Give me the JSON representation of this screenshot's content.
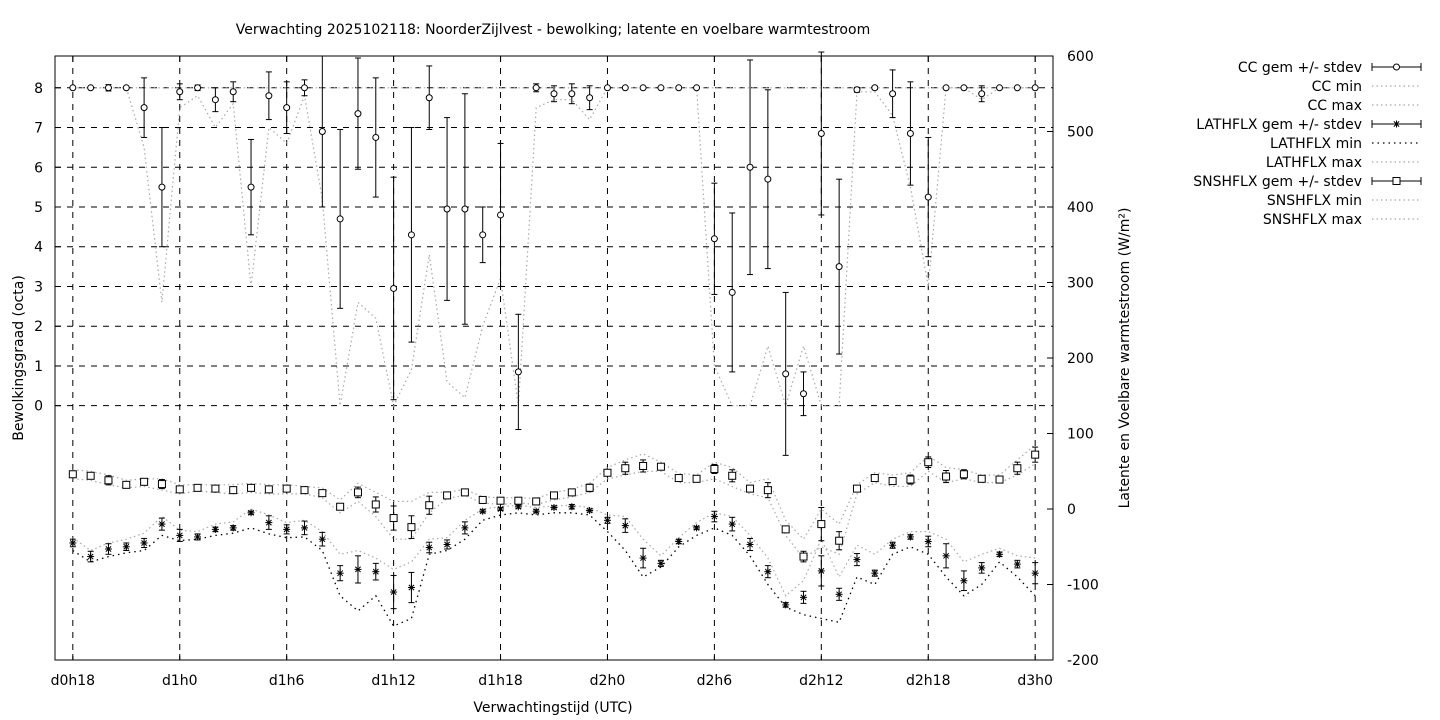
{
  "chart_data": {
    "type": "line",
    "title": "Verwachting 2025102118: NoorderZijlvest - bewolking; latente en voelbare warmtestroom",
    "xlabel": "Verwachtingstijd (UTC)",
    "ylabel": "Bewolkingsgraad (octa)",
    "y2label": "Latente en Voelbare warmtestroom (W/m²)",
    "xlim": [
      17,
      73
    ],
    "ylim": [
      -6.4,
      8.8
    ],
    "y2lim": [
      -200,
      600
    ],
    "grid": true,
    "legend_position": "outside-right",
    "x_ticks": [
      {
        "value": 18,
        "label": "d0h18"
      },
      {
        "value": 24,
        "label": "d1h0"
      },
      {
        "value": 30,
        "label": "d1h6"
      },
      {
        "value": 36,
        "label": "d1h12"
      },
      {
        "value": 42,
        "label": "d1h18"
      },
      {
        "value": 48,
        "label": "d2h0"
      },
      {
        "value": 54,
        "label": "d2h6"
      },
      {
        "value": 60,
        "label": "d2h12"
      },
      {
        "value": 66,
        "label": "d2h18"
      },
      {
        "value": 72,
        "label": "d3h0"
      }
    ],
    "y_ticks": [
      {
        "value": 0,
        "label": "0"
      },
      {
        "value": 1,
        "label": "1"
      },
      {
        "value": 2,
        "label": "2"
      },
      {
        "value": 3,
        "label": "3"
      },
      {
        "value": 4,
        "label": "4"
      },
      {
        "value": 5,
        "label": "5"
      },
      {
        "value": 6,
        "label": "6"
      },
      {
        "value": 7,
        "label": "7"
      },
      {
        "value": 8,
        "label": "8"
      }
    ],
    "y2_ticks": [
      {
        "value": -200,
        "label": "-200"
      },
      {
        "value": -100,
        "label": "-100"
      },
      {
        "value": 0,
        "label": "0"
      },
      {
        "value": 100,
        "label": "100"
      },
      {
        "value": 200,
        "label": "200"
      },
      {
        "value": 300,
        "label": "300"
      },
      {
        "value": 400,
        "label": "400"
      },
      {
        "value": 500,
        "label": "500"
      },
      {
        "value": 600,
        "label": "600"
      }
    ],
    "x": [
      18,
      19,
      20,
      21,
      22,
      23,
      24,
      25,
      26,
      27,
      28,
      29,
      30,
      31,
      32,
      33,
      34,
      35,
      36,
      37,
      38,
      39,
      40,
      41,
      42,
      43,
      44,
      45,
      46,
      47,
      48,
      49,
      50,
      51,
      52,
      53,
      54,
      55,
      56,
      57,
      58,
      59,
      60,
      61,
      62,
      63,
      64,
      65,
      66,
      67,
      68,
      69,
      70,
      71,
      72
    ],
    "series": [
      {
        "name": "CC gem +/- stdev",
        "axis": "left",
        "marker": "circle",
        "values": [
          8,
          8,
          8,
          8,
          7.5,
          5.5,
          7.9,
          8,
          7.7,
          7.9,
          5.5,
          7.8,
          7.5,
          8,
          6.9,
          4.7,
          7.35,
          6.75,
          2.95,
          4.3,
          7.75,
          4.95,
          4.95,
          4.3,
          4.8,
          0.85,
          8,
          7.85,
          7.85,
          7.75,
          8,
          8,
          8,
          8,
          8,
          8,
          4.2,
          2.85,
          6,
          5.7,
          0.8,
          0.3,
          6.85,
          3.5,
          7.95,
          8,
          7.85,
          6.85,
          5.25,
          8,
          8,
          7.85,
          8,
          8,
          8
        ],
        "stdev": [
          0,
          0,
          0.08,
          0,
          0.75,
          1.5,
          0.2,
          0.07,
          0.3,
          0.25,
          1.2,
          0.6,
          0.65,
          0.2,
          1.9,
          2.25,
          1.4,
          1.5,
          2.8,
          2.7,
          0.8,
          2.3,
          2.9,
          0.7,
          1.8,
          1.45,
          0.1,
          0.2,
          0.25,
          0.3,
          0,
          0,
          0,
          0,
          0,
          0,
          1.4,
          2,
          2.7,
          2.25,
          2.05,
          0.55,
          2.05,
          2.2,
          0.06,
          0.04,
          0.6,
          1.3,
          1.5,
          0,
          0,
          0.2,
          0,
          0,
          0
        ],
        "min": [
          8,
          8,
          8,
          8,
          6.5,
          2.6,
          7.5,
          7.8,
          7,
          7.6,
          3,
          7,
          6.6,
          7.8,
          5.2,
          0,
          2.6,
          2.2,
          0,
          0.9,
          3.8,
          0.6,
          0.2,
          2,
          3.2,
          0,
          7.5,
          7.7,
          7.7,
          7.2,
          8,
          8,
          8,
          8,
          8,
          8,
          1,
          0,
          0,
          1.5,
          0,
          1.5,
          0,
          0,
          7.9,
          7.9,
          7.3,
          5.5,
          3,
          8,
          8,
          7.7,
          8,
          8,
          8
        ],
        "max": [
          8,
          8,
          8,
          8,
          8,
          8,
          8,
          8,
          8,
          8,
          8,
          8,
          8,
          8,
          8,
          8,
          8,
          8,
          8,
          8,
          8,
          8,
          8,
          8,
          8,
          8,
          8,
          8,
          8,
          8,
          8,
          8,
          8,
          8,
          8,
          8,
          8,
          8,
          8,
          8,
          8,
          8,
          8,
          8,
          8,
          8,
          8,
          8,
          8,
          8,
          8,
          8,
          8,
          8,
          8
        ]
      },
      {
        "name": "LATHFLX gem +/- stdev",
        "axis": "right",
        "marker": "star",
        "values": [
          -45,
          -63,
          -53,
          -50,
          -45,
          -20,
          -35,
          -37,
          -27,
          -25,
          -5,
          -18,
          -27,
          -25,
          -40,
          -85,
          -80,
          -83,
          -110,
          -104,
          -51,
          -47,
          -25,
          -3,
          0,
          3,
          -3,
          2,
          3,
          -2,
          -15,
          -22,
          -65,
          -72,
          -43,
          -25,
          -10,
          -20,
          -47,
          -83,
          -127,
          -117,
          -82,
          -113,
          -67,
          -85,
          -48,
          -37,
          -43,
          -62,
          -95,
          -78,
          -60,
          -73,
          -85
        ],
        "stdev": [
          5,
          7,
          7,
          5,
          6,
          8,
          8,
          4,
          3,
          3,
          2,
          9,
          6,
          9,
          9,
          10,
          18,
          11,
          22,
          20,
          7,
          6,
          8,
          2,
          2,
          2,
          2,
          2,
          3,
          2,
          4,
          9,
          13,
          4,
          3,
          2,
          7,
          9,
          8,
          8,
          3,
          8,
          20,
          8,
          8,
          4,
          4,
          3,
          7,
          16,
          13,
          7,
          3,
          5,
          14
        ],
        "min": [
          -55,
          -70,
          -63,
          -58,
          -55,
          -35,
          -42,
          -40,
          -35,
          -32,
          -25,
          -33,
          -38,
          -37,
          -55,
          -115,
          -135,
          -115,
          -155,
          -145,
          -60,
          -55,
          -40,
          -15,
          -8,
          -5,
          -8,
          -5,
          -5,
          -8,
          -30,
          -55,
          -90,
          -77,
          -50,
          -35,
          -25,
          -35,
          -62,
          -100,
          -130,
          -140,
          -145,
          -150,
          -90,
          -100,
          -60,
          -50,
          -60,
          -90,
          -115,
          -100,
          -70,
          -90,
          -115
        ],
        "max": [
          -38,
          -55,
          -45,
          -40,
          -32,
          -10,
          -28,
          -30,
          -20,
          -17,
          0,
          -8,
          -18,
          -15,
          -30,
          -60,
          -55,
          -65,
          -80,
          -70,
          -40,
          -38,
          -15,
          0,
          3,
          5,
          2,
          4,
          5,
          2,
          -8,
          -10,
          -40,
          -62,
          -38,
          -18,
          -5,
          -10,
          -35,
          -65,
          -115,
          -95,
          -40,
          -90,
          -48,
          -60,
          -40,
          -30,
          -30,
          -40,
          -70,
          -60,
          -52,
          -62,
          -65
        ]
      },
      {
        "name": "SNSHFLX gem +/- stdev",
        "axis": "right",
        "marker": "square",
        "values": [
          46,
          44,
          38,
          32,
          36,
          33,
          26,
          28,
          27,
          25,
          28,
          26,
          27,
          25,
          21,
          3,
          22,
          6,
          -12,
          -24,
          5,
          18,
          22,
          12,
          11,
          11,
          10,
          18,
          22,
          28,
          48,
          54,
          57,
          56,
          41,
          40,
          53,
          44,
          27,
          25,
          -27,
          -63,
          -20,
          -42,
          27,
          41,
          37,
          39,
          62,
          43,
          46,
          40,
          39,
          54,
          72
        ],
        "stdev": [
          4,
          4,
          6,
          2,
          2,
          6,
          4,
          2,
          2,
          3,
          2,
          2,
          3,
          3,
          2,
          4,
          7,
          10,
          16,
          15,
          12,
          2,
          2,
          2,
          2,
          2,
          2,
          2,
          2,
          5,
          2,
          8,
          8,
          2,
          2,
          2,
          6,
          8,
          3,
          10,
          4,
          7,
          22,
          12,
          3,
          4,
          4,
          6,
          7,
          8,
          6,
          2,
          2,
          8,
          10
        ],
        "min": [
          40,
          38,
          32,
          28,
          30,
          25,
          20,
          24,
          22,
          20,
          22,
          20,
          20,
          20,
          15,
          -5,
          10,
          -10,
          -40,
          -40,
          -5,
          14,
          18,
          8,
          6,
          8,
          6,
          12,
          16,
          22,
          40,
          45,
          50,
          50,
          35,
          35,
          40,
          30,
          20,
          15,
          -35,
          -65,
          -50,
          -60,
          20,
          35,
          30,
          30,
          50,
          35,
          40,
          35,
          35,
          45,
          60
        ],
        "max": [
          52,
          50,
          45,
          38,
          40,
          40,
          32,
          32,
          32,
          32,
          34,
          32,
          32,
          30,
          28,
          12,
          34,
          22,
          10,
          10,
          22,
          22,
          26,
          16,
          15,
          15,
          14,
          22,
          26,
          34,
          55,
          65,
          73,
          62,
          47,
          45,
          62,
          55,
          35,
          40,
          -15,
          -40,
          0,
          -20,
          32,
          48,
          45,
          48,
          70,
          55,
          52,
          45,
          45,
          65,
          85
        ]
      }
    ],
    "legend": [
      {
        "label": "CC gem +/- stdev",
        "style": "circle-errorbar"
      },
      {
        "label": "CC min",
        "style": "dotted-grey"
      },
      {
        "label": "CC max",
        "style": "dotted-grey"
      },
      {
        "label": "LATHFLX gem +/- stdev",
        "style": "star-errorbar"
      },
      {
        "label": "LATHFLX min",
        "style": "dotted-black"
      },
      {
        "label": "LATHFLX max",
        "style": "dotted-grey"
      },
      {
        "label": "SNSHFLX gem +/- stdev",
        "style": "square-errorbar"
      },
      {
        "label": "SNSHFLX min",
        "style": "dotted-grey"
      },
      {
        "label": "SNSHFLX max",
        "style": "dotted-grey"
      }
    ]
  }
}
